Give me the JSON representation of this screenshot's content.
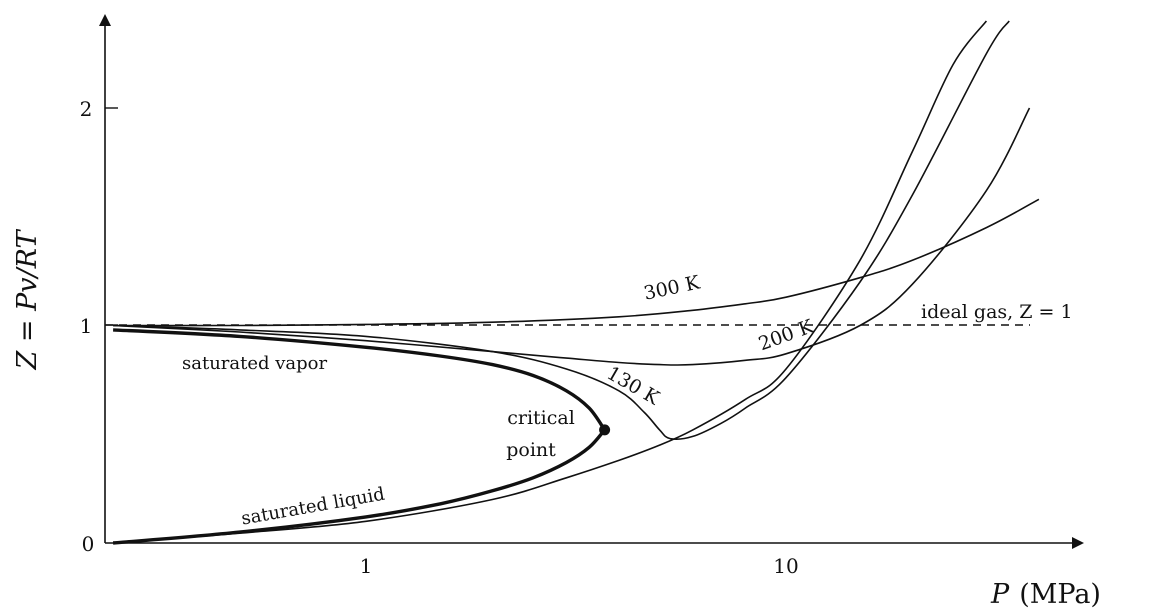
{
  "chart_data": {
    "type": "line",
    "title": "",
    "xlabel": {
      "symbol": "P",
      "unit": "(MPa)"
    },
    "ylabel": "Z = Pv/RT",
    "x_scale": "log",
    "xlim": [
      0.25,
      40
    ],
    "ylim": [
      0,
      2.35
    ],
    "x_ticks": [
      {
        "value": 1,
        "label": "1"
      },
      {
        "value": 10,
        "label": "10"
      }
    ],
    "y_ticks": [
      {
        "value": 0,
        "label": "0"
      },
      {
        "value": 1,
        "label": "1"
      },
      {
        "value": 2,
        "label": "2"
      }
    ],
    "reference_line": {
      "label": "ideal gas, Z = 1",
      "y": 1
    },
    "isotherms": [
      {
        "label": "300 K",
        "x": [
          0.25,
          0.5,
          1,
          2,
          4,
          6,
          8,
          10,
          15,
          20,
          30,
          40
        ],
        "y": [
          1.0,
          1.0,
          1.005,
          1.015,
          1.04,
          1.07,
          1.1,
          1.13,
          1.22,
          1.3,
          1.45,
          1.58
        ]
      },
      {
        "label": "200 K",
        "x": [
          0.25,
          0.5,
          1,
          2,
          3,
          4,
          5,
          6,
          8,
          10,
          15,
          20,
          30,
          38
        ],
        "y": [
          1.0,
          0.97,
          0.93,
          0.88,
          0.85,
          0.83,
          0.82,
          0.82,
          0.84,
          0.87,
          1.0,
          1.19,
          1.62,
          2.0
        ]
      },
      {
        "label": "130 K",
        "x": [
          0.25,
          0.5,
          1,
          2,
          3,
          4,
          4.6,
          5,
          5.3,
          6,
          7,
          8,
          10,
          15,
          20,
          30,
          34
        ],
        "y": [
          1.0,
          0.98,
          0.95,
          0.88,
          0.8,
          0.7,
          0.6,
          0.52,
          0.48,
          0.49,
          0.55,
          0.62,
          0.76,
          1.2,
          1.6,
          2.25,
          2.4
        ]
      },
      {
        "label": "",
        "x": [
          0.25,
          0.5,
          1,
          2,
          3,
          4,
          5,
          6,
          8,
          10,
          15,
          20,
          25,
          30
        ],
        "y": [
          0.0,
          0.045,
          0.1,
          0.2,
          0.3,
          0.38,
          0.45,
          0.52,
          0.66,
          0.8,
          1.3,
          1.8,
          2.2,
          2.4
        ]
      }
    ],
    "saturated_vapor": {
      "label": "saturated vapor",
      "x": [
        0.25,
        0.5,
        1,
        1.5,
        2,
        2.5,
        3,
        3.4,
        3.7
      ],
      "y": [
        0.98,
        0.95,
        0.9,
        0.86,
        0.82,
        0.77,
        0.7,
        0.62,
        0.52
      ]
    },
    "saturated_liquid": {
      "label": "saturated liquid",
      "x": [
        0.25,
        0.5,
        1,
        1.5,
        2,
        2.5,
        3,
        3.4,
        3.7
      ],
      "y": [
        0.0,
        0.05,
        0.12,
        0.18,
        0.24,
        0.3,
        0.37,
        0.44,
        0.52
      ]
    },
    "critical_point": {
      "label_line1": "critical",
      "label_line2": "point",
      "x": 3.7,
      "y": 0.52
    }
  }
}
